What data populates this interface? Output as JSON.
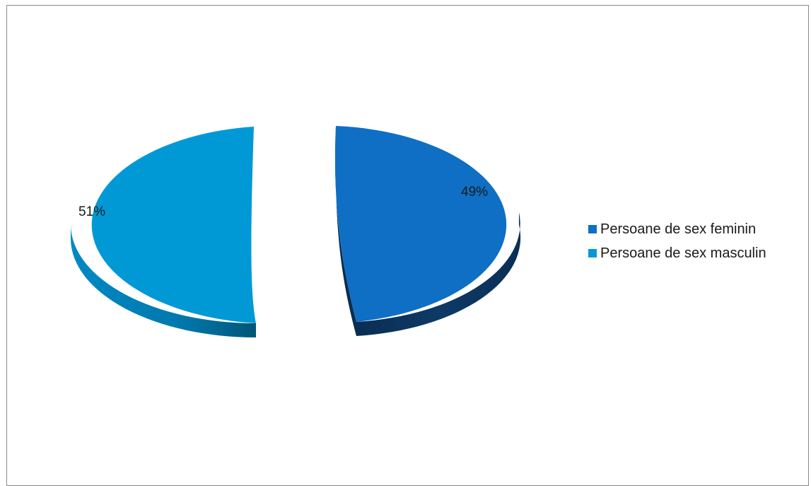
{
  "chart_data": {
    "type": "pie",
    "title": "",
    "slices": [
      {
        "label": "Persoane de sex feminin",
        "value": 49,
        "display": "49%",
        "color": "#0E6FC4",
        "side_color": "#0B3A66"
      },
      {
        "label": "Persoane de sex masculin",
        "value": 51,
        "display": "51%",
        "color": "#0099D6",
        "side_color": "#006E9E"
      }
    ],
    "exploded": true,
    "three_d": true,
    "legend_position": "right"
  }
}
